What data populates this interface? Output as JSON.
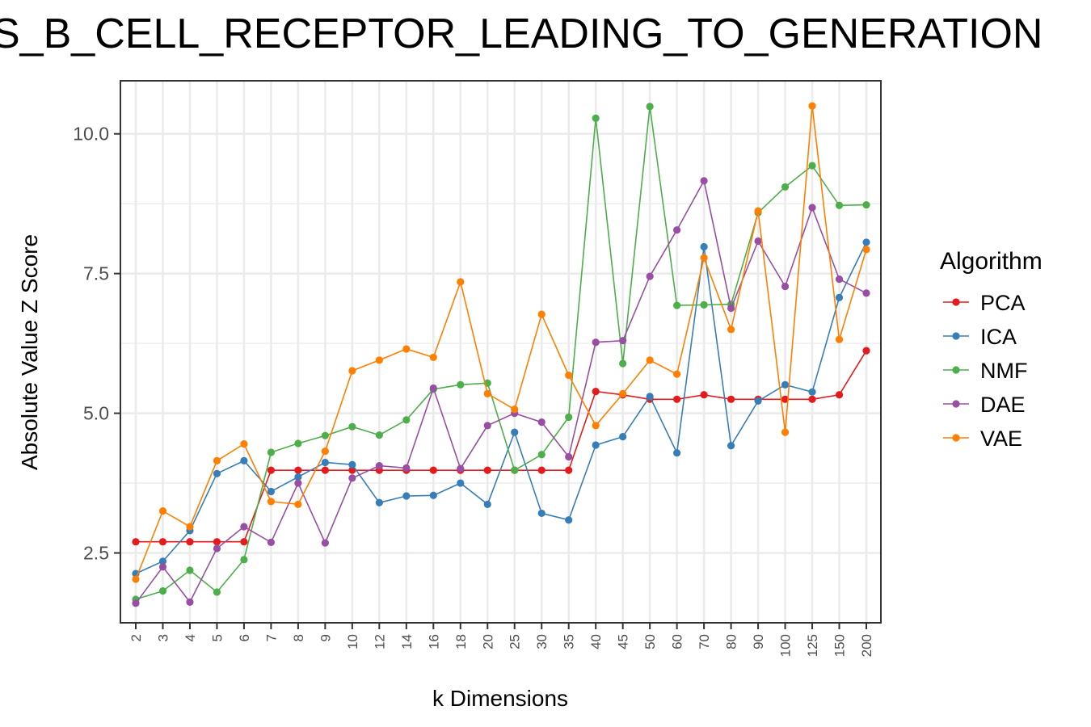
{
  "chart_data": {
    "type": "line",
    "title": "S_B_CELL_RECEPTOR_LEADING_TO_GENERATION",
    "xlabel": "k Dimensions",
    "ylabel": "Absolute Value Z Score",
    "x_categories": [
      "2",
      "3",
      "4",
      "5",
      "6",
      "7",
      "8",
      "9",
      "10",
      "12",
      "14",
      "16",
      "18",
      "20",
      "25",
      "30",
      "35",
      "40",
      "45",
      "50",
      "60",
      "70",
      "80",
      "90",
      "100",
      "125",
      "150",
      "200"
    ],
    "y_ticks": [
      2.5,
      5.0,
      7.5,
      10.0
    ],
    "y_tick_labels": [
      "2.5",
      "5.0",
      "7.5",
      "10.0"
    ],
    "ylim": [
      1.25,
      10.95
    ],
    "grid": true,
    "legend": {
      "title": "Algorithm",
      "position": "right"
    },
    "series": [
      {
        "name": "PCA",
        "color": "#e41a1c",
        "values": [
          2.7,
          2.7,
          2.7,
          2.7,
          2.7,
          3.98,
          3.98,
          3.98,
          3.98,
          3.98,
          3.98,
          3.98,
          3.98,
          3.98,
          3.98,
          3.98,
          3.98,
          5.39,
          5.33,
          5.25,
          5.25,
          5.33,
          5.25,
          5.25,
          5.25,
          5.25,
          5.33,
          6.12
        ]
      },
      {
        "name": "ICA",
        "color": "#377eb8",
        "values": [
          2.13,
          2.35,
          2.9,
          3.92,
          4.15,
          3.6,
          3.86,
          4.12,
          4.08,
          3.4,
          3.52,
          3.53,
          3.75,
          3.37,
          4.66,
          3.21,
          3.09,
          4.43,
          4.58,
          5.3,
          4.29,
          7.98,
          4.42,
          5.22,
          5.51,
          5.38,
          7.07,
          8.06
        ]
      },
      {
        "name": "NMF",
        "color": "#4daf4a",
        "values": [
          1.67,
          1.82,
          2.19,
          1.8,
          2.38,
          4.3,
          4.46,
          4.6,
          4.76,
          4.61,
          4.88,
          5.43,
          5.51,
          5.54,
          3.98,
          4.26,
          4.93,
          10.28,
          5.89,
          10.49,
          6.93,
          6.94,
          6.95,
          8.59,
          9.05,
          9.43,
          8.72,
          8.73
        ]
      },
      {
        "name": "DAE",
        "color": "#984ea3",
        "values": [
          1.6,
          2.25,
          1.62,
          2.58,
          2.97,
          2.69,
          3.75,
          2.68,
          3.84,
          4.06,
          4.02,
          5.45,
          4.01,
          4.78,
          5.0,
          4.84,
          4.22,
          6.27,
          6.3,
          7.45,
          8.28,
          9.16,
          6.88,
          8.08,
          7.27,
          8.68,
          7.4,
          7.15
        ]
      },
      {
        "name": "VAE",
        "color": "#ff7f00",
        "values": [
          2.03,
          3.25,
          2.97,
          4.15,
          4.45,
          3.42,
          3.37,
          4.32,
          5.76,
          5.95,
          6.15,
          6.0,
          7.35,
          5.35,
          5.07,
          6.77,
          5.68,
          4.78,
          5.35,
          5.95,
          5.7,
          7.78,
          6.5,
          8.62,
          4.66,
          10.5,
          6.32,
          7.93
        ]
      }
    ]
  }
}
